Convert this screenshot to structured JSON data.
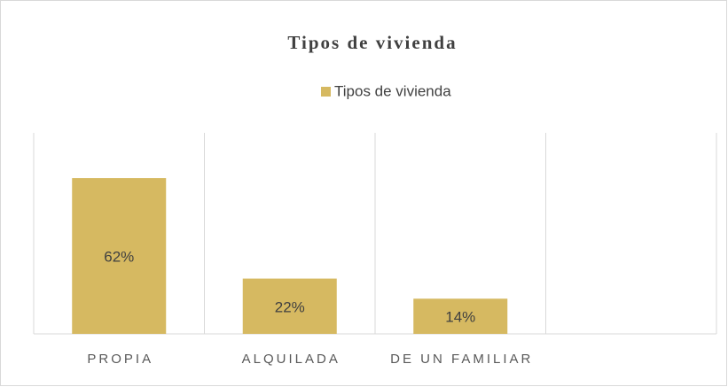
{
  "chart_data": {
    "type": "bar",
    "title": "Tipos de vivienda",
    "categories": [
      "PROPIA",
      "ALQUILADA",
      "DE UN FAMILIAR",
      null
    ],
    "series": [
      {
        "name": "Tipos de vivienda",
        "color": "#d6b961",
        "values": [
          62,
          22,
          14,
          null
        ],
        "value_labels": [
          "62%",
          "22%",
          "14%",
          null
        ]
      }
    ],
    "ylim": [
      0,
      80
    ],
    "legend": "top"
  }
}
